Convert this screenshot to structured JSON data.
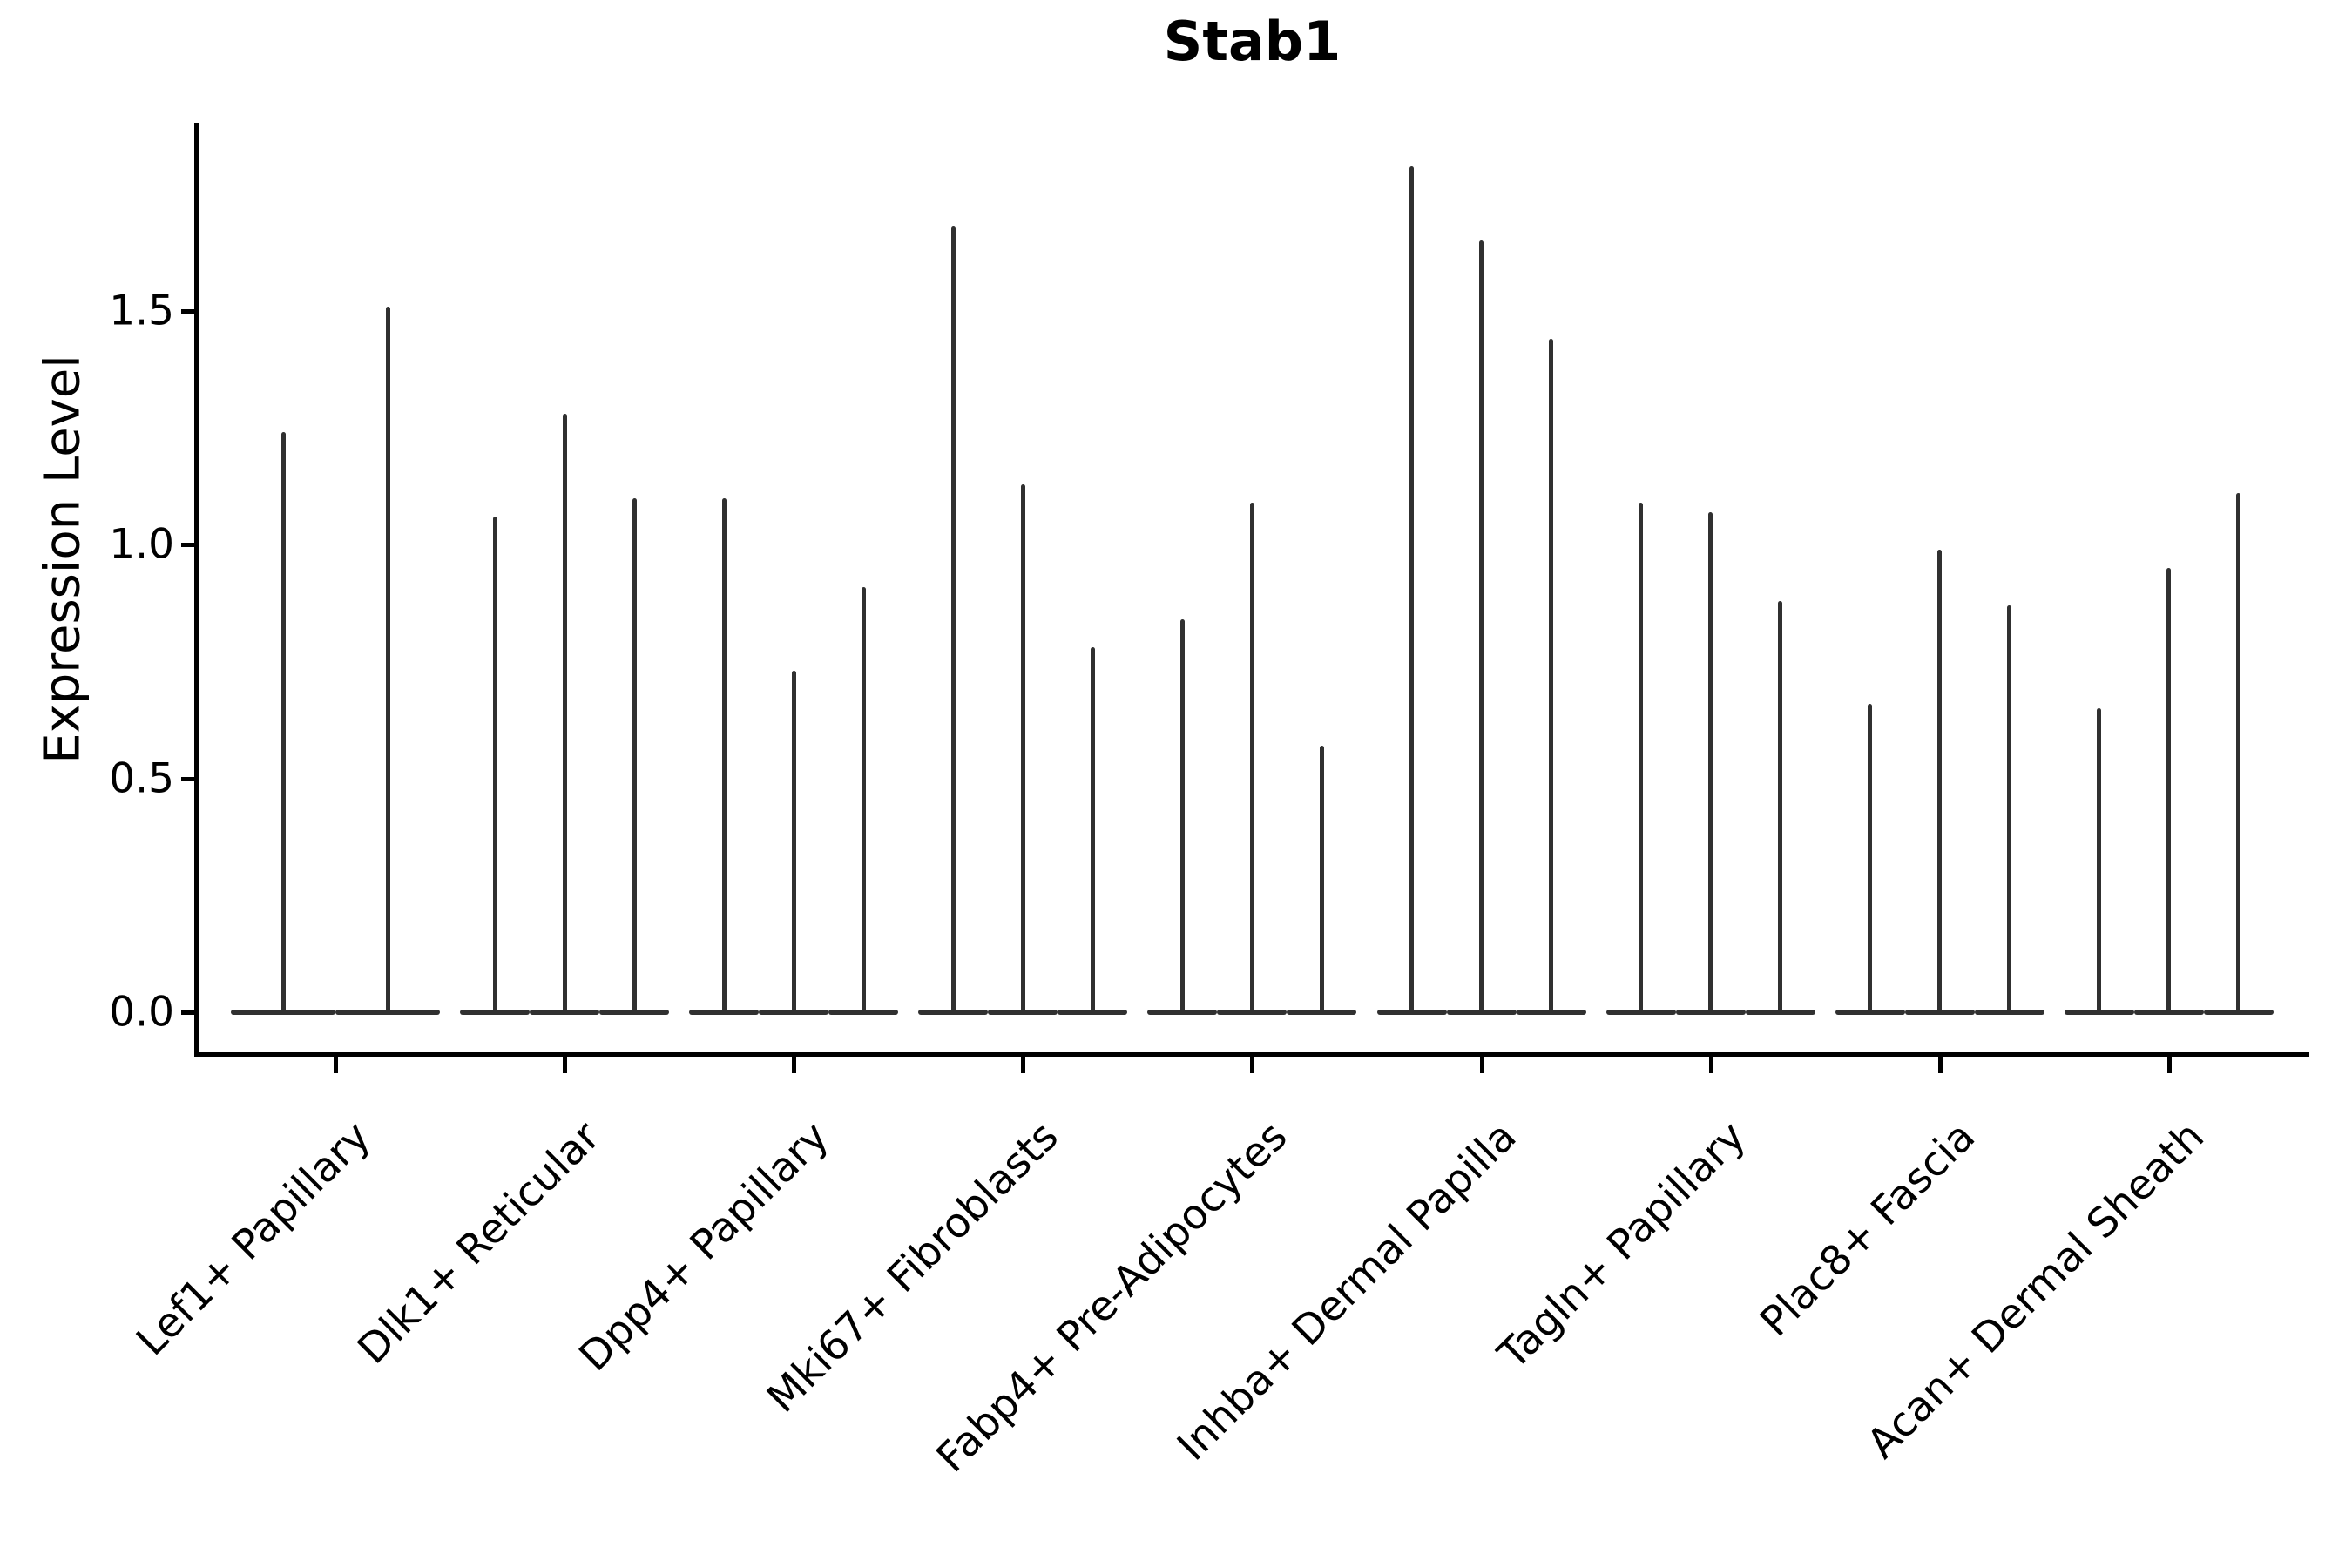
{
  "figure": {
    "background": "#ffffff"
  },
  "chart_data": {
    "type": "violin",
    "title": "Stab1",
    "ylabel": "Expression Level",
    "xlabel": "",
    "ytick_labels": [
      "0.0",
      "0.5",
      "1.0",
      "1.5"
    ],
    "ytick_values": [
      0.0,
      0.5,
      1.0,
      1.5
    ],
    "ylim": [
      -0.09,
      1.9
    ],
    "grid": false,
    "legend": null,
    "colors": {
      "violin": "#303030",
      "axis": "#000000",
      "text": "#000000"
    },
    "categories": [
      "Lef1+ Papillary",
      "Dlk1+ Reticular",
      "Dpp4+ Papillary",
      "Mki67+ Fibroblasts",
      "Fabp4+ Pre-Adipocytes",
      "Inhba+ Dermal Papilla",
      "Tagln+ Papillary",
      "Plac8+ Fascia",
      "Acan+ Dermal Sheath"
    ],
    "groups": [
      {
        "label": "Lef1+ Papillary",
        "violin_max_values": [
          1.24,
          1.51
        ]
      },
      {
        "label": "Dlk1+ Reticular",
        "violin_max_values": [
          1.06,
          1.28,
          1.1
        ]
      },
      {
        "label": "Dpp4+ Papillary",
        "violin_max_values": [
          1.1,
          0.73,
          0.91
        ]
      },
      {
        "label": "Mki67+ Fibroblasts",
        "violin_max_values": [
          1.68,
          1.13,
          0.78
        ]
      },
      {
        "label": "Fabp4+ Pre-Adipocytes",
        "violin_max_values": [
          0.84,
          1.09,
          0.57
        ]
      },
      {
        "label": "Inhba+ Dermal Papilla",
        "violin_max_values": [
          1.81,
          1.65,
          1.44
        ]
      },
      {
        "label": "Tagln+ Papillary",
        "violin_max_values": [
          1.09,
          1.07,
          0.88
        ]
      },
      {
        "label": "Plac8+ Fascia",
        "violin_max_values": [
          0.66,
          0.99,
          0.87
        ]
      },
      {
        "label": "Acan+ Dermal Sheath",
        "violin_max_values": [
          0.65,
          0.95,
          1.11
        ]
      }
    ]
  }
}
